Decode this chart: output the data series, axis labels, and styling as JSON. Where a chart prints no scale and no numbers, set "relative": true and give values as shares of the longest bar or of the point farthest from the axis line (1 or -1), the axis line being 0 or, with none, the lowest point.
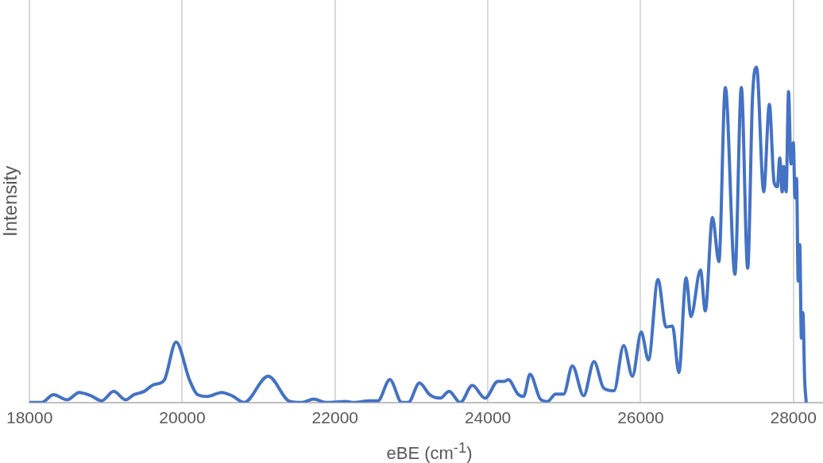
{
  "chart_data": {
    "type": "line",
    "xlabel": "eBE (cm$^{-1}$)",
    "ylabel": "Intensity",
    "relative": true,
    "grid": "x",
    "xlim": [
      18000,
      28388
    ],
    "xticks": [
      18000,
      20000,
      22000,
      24000,
      26000,
      28000
    ],
    "marker": "none",
    "series": [
      {
        "color": "#4472c4",
        "x": [
          18000,
          18157,
          18314,
          18493,
          18650,
          18807,
          18943,
          19101,
          19258,
          19363,
          19499,
          19625,
          19761,
          19918,
          20096,
          20201,
          20327,
          20516,
          20652,
          20809,
          21124,
          21407,
          21564,
          21721,
          21878,
          22140,
          22245,
          22455,
          22560,
          22717,
          22874,
          22958,
          23105,
          23241,
          23377,
          23493,
          23639,
          23797,
          23964,
          24132,
          24216,
          24268,
          24394,
          24468,
          24552,
          24688,
          24782,
          24887,
          24992,
          25107,
          25254,
          25390,
          25516,
          25652,
          25778,
          25893,
          26008,
          26103,
          26228,
          26333,
          26417,
          26501,
          26596,
          26659,
          26784,
          26847,
          26941,
          27025,
          27109,
          27235,
          27319,
          27402,
          27465,
          27518,
          27612,
          27686,
          27748,
          27790,
          27822,
          27853,
          27874,
          27905,
          27937,
          27968,
          28000,
          28021,
          28042,
          28063,
          28084,
          28105,
          28126,
          28147,
          28168
        ],
        "values": [
          0,
          0,
          0.023,
          0.008,
          0.03,
          0.02,
          0.005,
          0.033,
          0.008,
          0.023,
          0.033,
          0.053,
          0.066,
          0.18,
          0.066,
          0.023,
          0.018,
          0.03,
          0.02,
          0,
          0.078,
          0.003,
          0,
          0.01,
          0,
          0.003,
          0,
          0.005,
          0.005,
          0.068,
          0,
          0,
          0.058,
          0.023,
          0.013,
          0.033,
          0,
          0.051,
          0.013,
          0.063,
          0.063,
          0.068,
          0.025,
          0.018,
          0.084,
          0.01,
          0.003,
          0.025,
          0.025,
          0.109,
          0.02,
          0.122,
          0.043,
          0.035,
          0.17,
          0.078,
          0.21,
          0.127,
          0.367,
          0.225,
          0.228,
          0.089,
          0.372,
          0.256,
          0.395,
          0.273,
          0.552,
          0.42,
          0.939,
          0.382,
          0.939,
          0.4,
          0.909,
          1,
          0.628,
          0.889,
          0.656,
          0.643,
          0.729,
          0.628,
          0.704,
          0.628,
          0.927,
          0.711,
          0.775,
          0.61,
          0.668,
          0.362,
          0.471,
          0.192,
          0.268,
          0.073,
          0
        ]
      }
    ]
  }
}
